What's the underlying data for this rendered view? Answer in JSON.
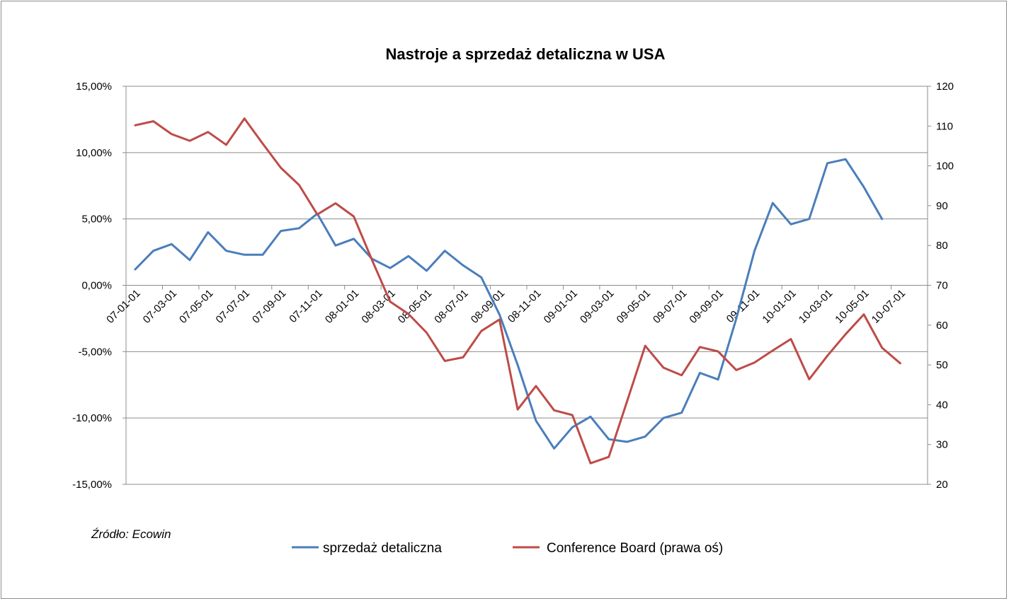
{
  "chart_data": {
    "type": "line",
    "title": "Nastroje a sprzedaż detaliczna w USA",
    "source": "Źródło: Ecowin",
    "x": [
      "07-01-01",
      "07-02-01",
      "07-03-01",
      "07-04-01",
      "07-05-01",
      "07-06-01",
      "07-07-01",
      "07-08-01",
      "07-09-01",
      "07-10-01",
      "07-11-01",
      "07-12-01",
      "08-01-01",
      "08-02-01",
      "08-03-01",
      "08-04-01",
      "08-05-01",
      "08-06-01",
      "08-07-01",
      "08-08-01",
      "08-09-01",
      "08-10-01",
      "08-11-01",
      "08-12-01",
      "09-01-01",
      "09-02-01",
      "09-03-01",
      "09-04-01",
      "09-05-01",
      "09-06-01",
      "09-07-01",
      "09-08-01",
      "09-09-01",
      "09-10-01",
      "09-11-01",
      "09-12-01",
      "10-01-01",
      "10-02-01",
      "10-03-01",
      "10-04-01",
      "10-05-01",
      "10-06-01",
      "10-07-01",
      "10-08-01"
    ],
    "x_tick_labels": [
      "07-01-01",
      "07-03-01",
      "07-05-01",
      "07-07-01",
      "07-09-01",
      "07-11-01",
      "08-01-01",
      "08-03-01",
      "08-05-01",
      "08-07-01",
      "08-09-01",
      "08-11-01",
      "09-01-01",
      "09-03-01",
      "09-05-01",
      "09-07-01",
      "09-09-01",
      "09-11-01",
      "10-01-01",
      "10-03-01",
      "10-05-01",
      "10-07-01"
    ],
    "y_left": {
      "ticks": [
        "15,00%",
        "10,00%",
        "5,00%",
        "0,00%",
        "-5,00%",
        "-10,00%",
        "-15,00%"
      ],
      "min": -15,
      "max": 15
    },
    "y_right": {
      "ticks": [
        "120",
        "110",
        "100",
        "90",
        "80",
        "70",
        "60",
        "50",
        "40",
        "30",
        "20"
      ],
      "min": 20,
      "max": 120
    },
    "grid": "horizontal",
    "legend_position": "bottom",
    "series": [
      {
        "name": "sprzedaż detaliczna",
        "axis": "left",
        "color": "#4a7ebb",
        "values": [
          1.2,
          2.6,
          3.1,
          1.9,
          4.0,
          2.6,
          2.3,
          2.3,
          4.1,
          4.3,
          5.4,
          3.0,
          3.5,
          2.0,
          1.3,
          2.2,
          1.1,
          2.6,
          1.5,
          0.6,
          -2.2,
          -6.0,
          -10.2,
          -12.3,
          -10.7,
          -9.9,
          -11.6,
          -11.8,
          -11.4,
          -10.0,
          -9.6,
          -6.6,
          -7.1,
          -2.5,
          2.6,
          6.2,
          4.6,
          5.0,
          9.2,
          9.5,
          7.4,
          5.0,
          null,
          null
        ]
      },
      {
        "name": "Conference Board (prawa oś)",
        "axis": "right",
        "color": "#be4b48",
        "values": [
          110.2,
          111.2,
          108.0,
          106.3,
          108.5,
          105.3,
          111.9,
          105.6,
          99.5,
          95.2,
          87.8,
          90.6,
          87.3,
          76.4,
          65.9,
          62.8,
          58.1,
          51.0,
          51.9,
          58.5,
          61.4,
          38.8,
          44.7,
          38.6,
          37.4,
          25.3,
          26.9,
          40.8,
          54.8,
          49.3,
          47.4,
          54.5,
          53.4,
          48.7,
          50.6,
          53.6,
          56.5,
          46.4,
          52.3,
          57.7,
          62.7,
          54.3,
          50.4,
          null
        ]
      }
    ]
  }
}
